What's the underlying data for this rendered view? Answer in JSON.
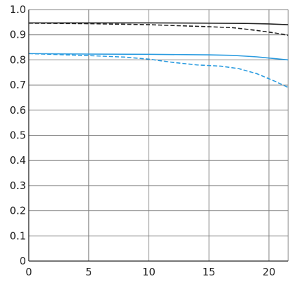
{
  "chart_data": {
    "type": "line",
    "title": "",
    "xlabel": "",
    "ylabel": "",
    "xlim": [
      0,
      21.6
    ],
    "ylim": [
      0,
      1.0
    ],
    "grid": true,
    "x_ticks": [
      0,
      5,
      10,
      15,
      20
    ],
    "x_tick_labels": [
      "0",
      "5",
      "10",
      "15",
      "20"
    ],
    "y_ticks": [
      0,
      0.1,
      0.2,
      0.3,
      0.4,
      0.5,
      0.6,
      0.7,
      0.8,
      0.9,
      1.0
    ],
    "y_tick_labels": [
      "0",
      "0.1",
      "0.2",
      "0.3",
      "0.4",
      "0.5",
      "0.6",
      "0.7",
      "0.8",
      "0.9",
      "1.0"
    ],
    "colors": {
      "black_series": "#222222",
      "blue_series": "#2a9be0",
      "grid": "#808080",
      "axis": "#222222"
    },
    "series": [
      {
        "color": "#222222",
        "dash": false,
        "points": [
          [
            0,
            0.947
          ],
          [
            5,
            0.947
          ],
          [
            10,
            0.947
          ],
          [
            15,
            0.946
          ],
          [
            18,
            0.945
          ],
          [
            20,
            0.943
          ],
          [
            21.6,
            0.94
          ]
        ]
      },
      {
        "color": "#222222",
        "dash": true,
        "points": [
          [
            0,
            0.946
          ],
          [
            5,
            0.944
          ],
          [
            10,
            0.94
          ],
          [
            13,
            0.935
          ],
          [
            15,
            0.932
          ],
          [
            17,
            0.928
          ],
          [
            19,
            0.917
          ],
          [
            20.5,
            0.907
          ],
          [
            21.6,
            0.898
          ]
        ]
      },
      {
        "color": "#2a9be0",
        "dash": false,
        "points": [
          [
            0,
            0.825
          ],
          [
            5,
            0.823
          ],
          [
            10,
            0.822
          ],
          [
            15,
            0.82
          ],
          [
            17,
            0.818
          ],
          [
            19,
            0.812
          ],
          [
            20.5,
            0.805
          ],
          [
            21.6,
            0.8
          ]
        ]
      },
      {
        "color": "#2a9be0",
        "dash": true,
        "points": [
          [
            0,
            0.825
          ],
          [
            5,
            0.817
          ],
          [
            8,
            0.811
          ],
          [
            10,
            0.803
          ],
          [
            12,
            0.79
          ],
          [
            14,
            0.78
          ],
          [
            16,
            0.775
          ],
          [
            17.5,
            0.765
          ],
          [
            19,
            0.745
          ],
          [
            20.5,
            0.715
          ],
          [
            21.6,
            0.69
          ]
        ]
      }
    ]
  }
}
